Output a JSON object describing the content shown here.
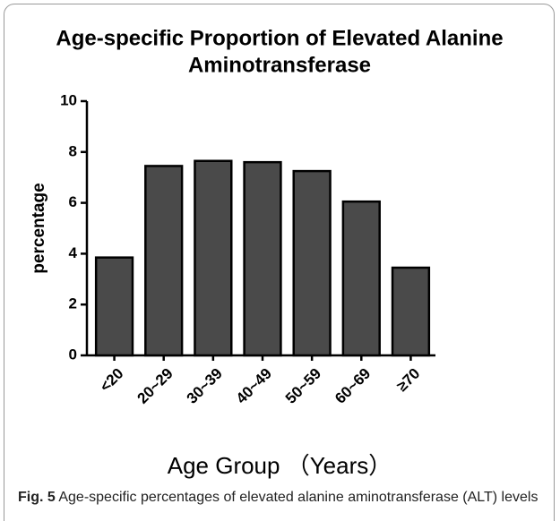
{
  "chart_data": {
    "type": "bar",
    "title": [
      "Age-specific Proportion of Elevated Alanine",
      "Aminotransferase"
    ],
    "xlabel": "Age Group （Years）",
    "ylabel": "percentage",
    "categories": [
      "<20",
      "20~29",
      "30~39",
      "40~49",
      "50~59",
      "60~69",
      "≥70"
    ],
    "values": [
      3.85,
      7.45,
      7.65,
      7.6,
      7.25,
      6.05,
      3.45
    ],
    "color": "#4a4a4a",
    "ylim": [
      0,
      10
    ],
    "yticks": [
      0,
      2,
      4,
      6,
      8,
      10
    ],
    "grid": false
  },
  "caption": {
    "label": "Fig. 5",
    "text": "Age-specific percentages of elevated alanine aminotransferase (ALT) levels"
  }
}
